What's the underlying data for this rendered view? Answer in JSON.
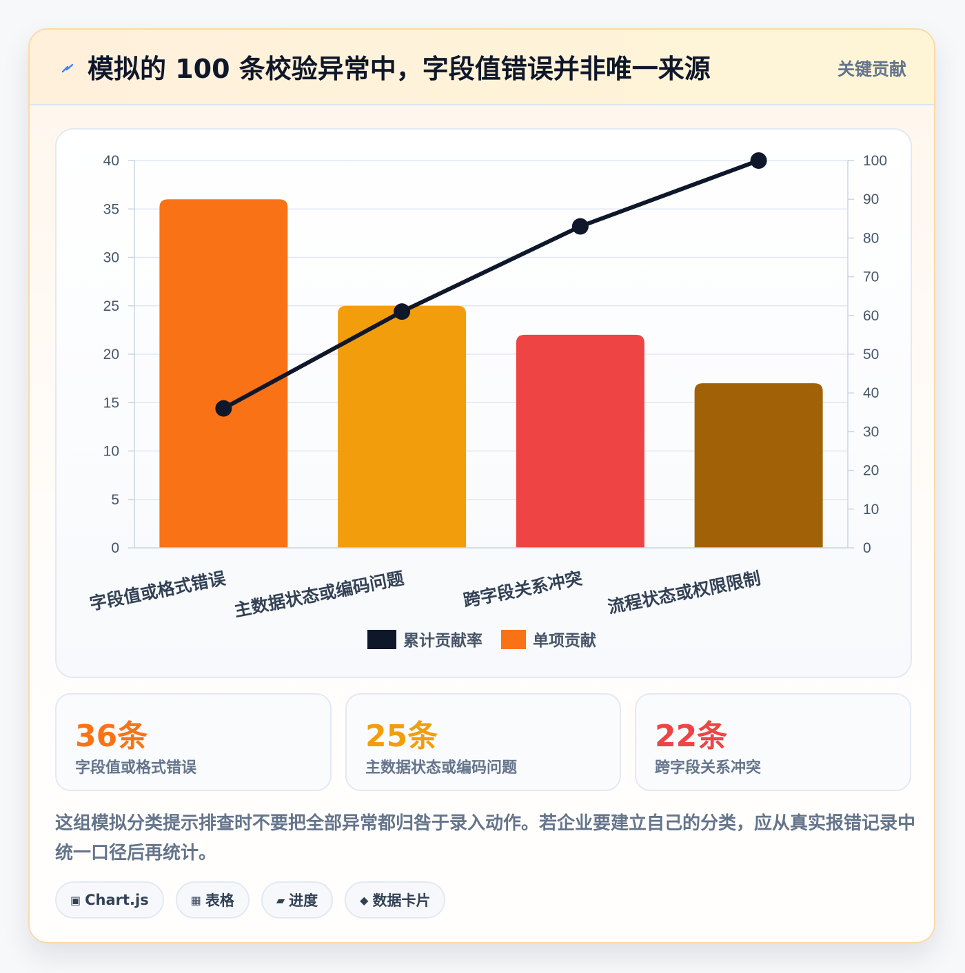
{
  "header": {
    "icon": "lightning-icon",
    "title": "模拟的 100 条校验异常中，字段值错误并非唯一来源",
    "badge": "关键贡献"
  },
  "chart_data": {
    "type": "bar",
    "categories": [
      "字段值或格式错误",
      "主数据状态或编码问题",
      "跨字段关系冲突",
      "流程状态或权限限制"
    ],
    "values": [
      36,
      25,
      22,
      17
    ],
    "bar_colors": [
      "#f97316",
      "#f29e0c",
      "#ef4444",
      "#a16207"
    ],
    "line": {
      "name": "累计贡献率",
      "values": [
        36,
        61,
        83,
        100
      ],
      "color": "#0f172a",
      "axis": "right"
    },
    "legend": [
      {
        "name": "累计贡献率",
        "color": "#0f172a"
      },
      {
        "name": "单项贡献",
        "color": "#f97316"
      }
    ],
    "legend_position": "bottom",
    "ylim": [
      0,
      40
    ],
    "y_ticks": [
      0,
      5,
      10,
      15,
      20,
      25,
      30,
      35,
      40
    ],
    "y2lim": [
      0,
      100
    ],
    "y2_ticks": [
      0,
      10,
      20,
      30,
      40,
      50,
      60,
      70,
      80,
      90,
      100
    ],
    "grid": true
  },
  "stats": [
    {
      "value": "36条",
      "label": "字段值或格式错误",
      "color": "#f97316"
    },
    {
      "value": "25条",
      "label": "主数据状态或编码问题",
      "color": "#f29e0c"
    },
    {
      "value": "22条",
      "label": "跨字段关系冲突",
      "color": "#ef4444"
    }
  ],
  "note": "这组模拟分类提示排查时不要把全部异常都归咎于录入动作。若企业要建立自己的分类，应从真实报错记录中统一口径后再统计。",
  "tags": [
    {
      "icon": "chart-icon",
      "glyph": "▣",
      "label": "Chart.js"
    },
    {
      "icon": "table-icon",
      "glyph": "▦",
      "label": "表格"
    },
    {
      "icon": "progress-icon",
      "glyph": "▰",
      "label": "进度"
    },
    {
      "icon": "card-icon",
      "glyph": "◆",
      "label": "数据卡片"
    }
  ]
}
